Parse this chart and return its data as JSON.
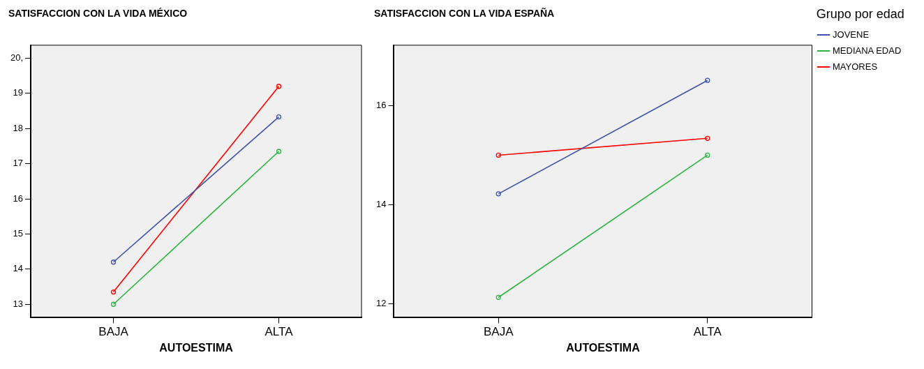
{
  "chart_data": [
    {
      "type": "line",
      "title": "SATISFACCION CON LA VIDA MÉXICO",
      "xlabel": "AUTOESTIMA",
      "categories": [
        "BAJA",
        "ALTA"
      ],
      "ylim": [
        12.62,
        20.37
      ],
      "yticks": [
        13,
        14,
        15,
        16,
        17,
        18,
        19,
        {
          "value": 20,
          "label": "20,"
        }
      ],
      "grid": false,
      "legend": false,
      "marker": "circle",
      "line_style": "solid",
      "series": [
        {
          "color": "#3f51a8",
          "values": [
            14.2,
            18.33
          ]
        },
        {
          "color": "#2bb540",
          "values": [
            13.0,
            17.35
          ]
        },
        {
          "color": "#ff0000",
          "values": [
            13.35,
            19.2
          ]
        }
      ]
    },
    {
      "type": "line",
      "title": "SATISFACCION CON LA VIDA ESPAÑA",
      "xlabel": "AUTOESTIMA",
      "legend_title": "Grupo por edad",
      "categories": [
        "BAJA",
        "ALTA"
      ],
      "ylim": [
        11.72,
        17.22
      ],
      "yticks": [
        12,
        14,
        16
      ],
      "grid": false,
      "legend": "right",
      "marker": "circle",
      "line_style": "solid",
      "series": [
        {
          "name": "JOVENE",
          "color": "#3f51a8",
          "values": [
            14.22,
            16.51
          ]
        },
        {
          "name": "MEDIANA EDAD",
          "color": "#2bb540",
          "values": [
            12.13,
            15.0
          ]
        },
        {
          "name": "MAYORES",
          "color": "#ff0000",
          "values": [
            15.0,
            15.34
          ]
        }
      ]
    }
  ]
}
